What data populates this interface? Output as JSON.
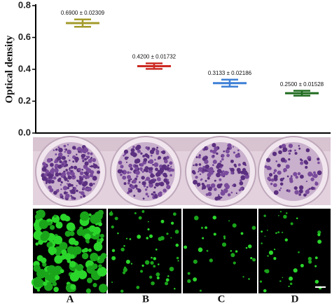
{
  "chart_data": {
    "type": "errorbar",
    "ylabel": "Optical density",
    "categories": [
      "A",
      "B",
      "C",
      "D"
    ],
    "values": [
      0.69,
      0.42,
      0.3133,
      0.25
    ],
    "errors": [
      0.02309,
      0.01732,
      0.02186,
      0.01528
    ],
    "value_labels": [
      "0.6900 ± 0.02309",
      "0.4200 ± 0.01732",
      "0.3133 ± 0.02186",
      "0.2500 ± 0.01528"
    ],
    "colors": [
      "#a39b2b",
      "#cc2a22",
      "#3d7fd6",
      "#1f6b1f"
    ],
    "ylim": [
      0,
      0.8
    ],
    "yticks": [
      {
        "value": 0,
        "label": "0.0"
      },
      0.2,
      0.4,
      0.6,
      0.8
    ]
  }
}
